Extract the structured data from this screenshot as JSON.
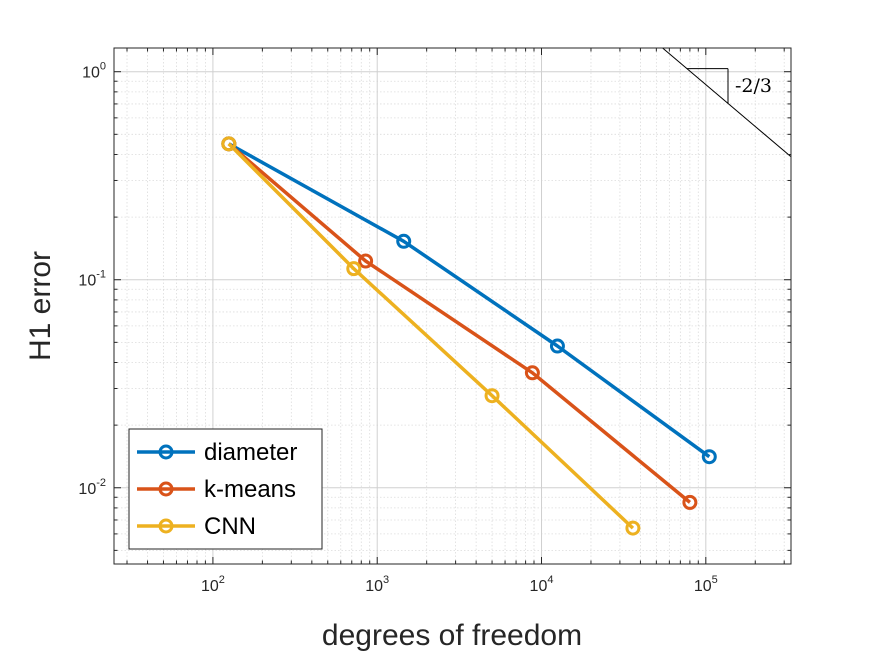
{
  "chart_data": {
    "type": "line",
    "xscale": "log",
    "yscale": "log",
    "xlabel": "degrees of freedom",
    "ylabel": "H1 error",
    "xlim": [
      25,
      330000
    ],
    "ylim": [
      0.0043,
      1.3
    ],
    "grid": true,
    "legend_position": "bottom-left",
    "x_ticks": [
      {
        "value": 100,
        "base": "10",
        "exp": "2"
      },
      {
        "value": 1000,
        "base": "10",
        "exp": "3"
      },
      {
        "value": 10000,
        "base": "10",
        "exp": "4"
      },
      {
        "value": 100000,
        "base": "10",
        "exp": "5"
      }
    ],
    "y_ticks": [
      {
        "value": 0.01,
        "base": "10",
        "exp": "-2"
      },
      {
        "value": 0.1,
        "base": "10",
        "exp": "-1"
      },
      {
        "value": 1,
        "base": "10",
        "exp": "0"
      }
    ],
    "series": [
      {
        "name": "diameter",
        "color": "#0072BD",
        "x": [
          125,
          1450,
          12500,
          105000
        ],
        "y": [
          0.45,
          0.153,
          0.048,
          0.0141
        ]
      },
      {
        "name": "k-means",
        "color": "#D95319",
        "x": [
          125,
          850,
          8800,
          80000
        ],
        "y": [
          0.45,
          0.123,
          0.0357,
          0.0085
        ]
      },
      {
        "name": "CNN",
        "color": "#EDB120",
        "x": [
          125,
          720,
          5000,
          36000
        ],
        "y": [
          0.45,
          0.113,
          0.0277,
          0.0064
        ]
      }
    ],
    "annotations": [
      {
        "type": "slope-triangle",
        "label": "-2/3",
        "slope": -0.6667,
        "line_from": {
          "x": 40000,
          "y": 1.6
        },
        "line_to": {
          "x": 330000,
          "y": 0.39
        }
      }
    ]
  }
}
